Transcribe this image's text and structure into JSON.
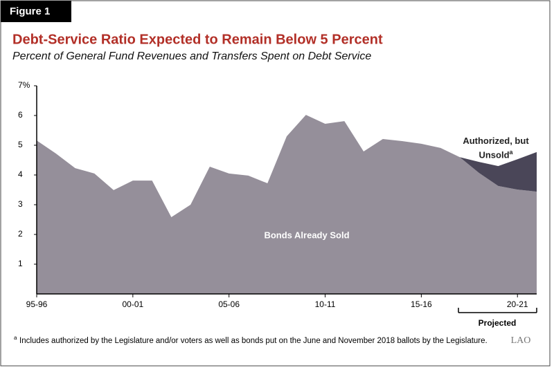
{
  "figure_label": "Figure 1",
  "logo": "LAO",
  "chart_data": {
    "type": "area",
    "title": "Debt-Service Ratio Expected to Remain Below 5 Percent",
    "subtitle": "Percent of General Fund Revenues and Transfers Spent on Debt Service",
    "categories": [
      "95-96",
      null,
      null,
      null,
      null,
      "00-01",
      null,
      null,
      null,
      null,
      "05-06",
      null,
      null,
      null,
      null,
      "10-11",
      null,
      null,
      null,
      null,
      "15-16",
      null,
      null,
      null,
      null,
      "20-21",
      null
    ],
    "series": [
      {
        "name": "Bonds Already Sold",
        "color": "#958f9a",
        "values": [
          5.16,
          4.72,
          4.23,
          4.05,
          3.49,
          3.81,
          3.81,
          2.58,
          3.0,
          4.28,
          4.05,
          3.98,
          3.72,
          5.3,
          6.02,
          5.72,
          5.81,
          4.79,
          5.21,
          5.14,
          5.05,
          4.91,
          4.6,
          4.07,
          3.63,
          3.51,
          3.44
        ]
      },
      {
        "name": "Authorized, but Unsold",
        "color": "#4a4658",
        "values": [
          null,
          null,
          null,
          null,
          null,
          null,
          null,
          null,
          null,
          null,
          null,
          null,
          null,
          null,
          null,
          null,
          null,
          null,
          null,
          null,
          null,
          null,
          0,
          0.37,
          0.67,
          1.02,
          1.33
        ]
      }
    ],
    "stacked": true,
    "ylim": [
      0,
      7
    ],
    "yticks": [
      1,
      2,
      3,
      4,
      5,
      6,
      {
        "value": 7,
        "label": "7%"
      }
    ],
    "projected_label": "Projected",
    "note_marker": "a",
    "footnote": "Includes authorized by the Legislature and/or voters as well as bonds put on the June and November 2018 ballots by the Legislature."
  }
}
